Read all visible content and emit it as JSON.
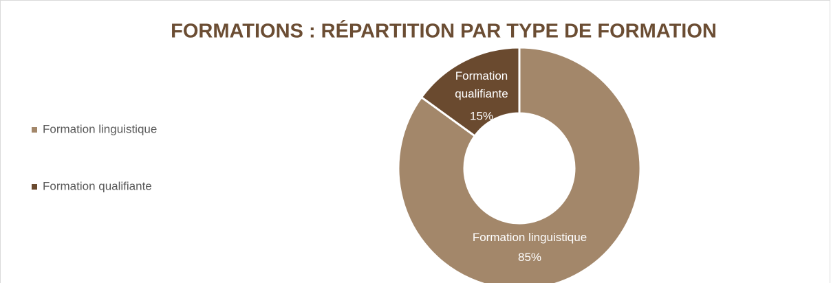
{
  "chart_data": {
    "type": "pie",
    "title": "FORMATIONS : RÉPARTITION PAR TYPE DE FORMATION",
    "categories": [
      "Formation linguistique",
      "Formation qualifiante"
    ],
    "values": [
      85,
      15
    ],
    "value_labels": [
      "85%",
      "15%"
    ],
    "colors": [
      "#a3876a",
      "#6a4a2f"
    ],
    "donut": true,
    "legend": "left"
  }
}
